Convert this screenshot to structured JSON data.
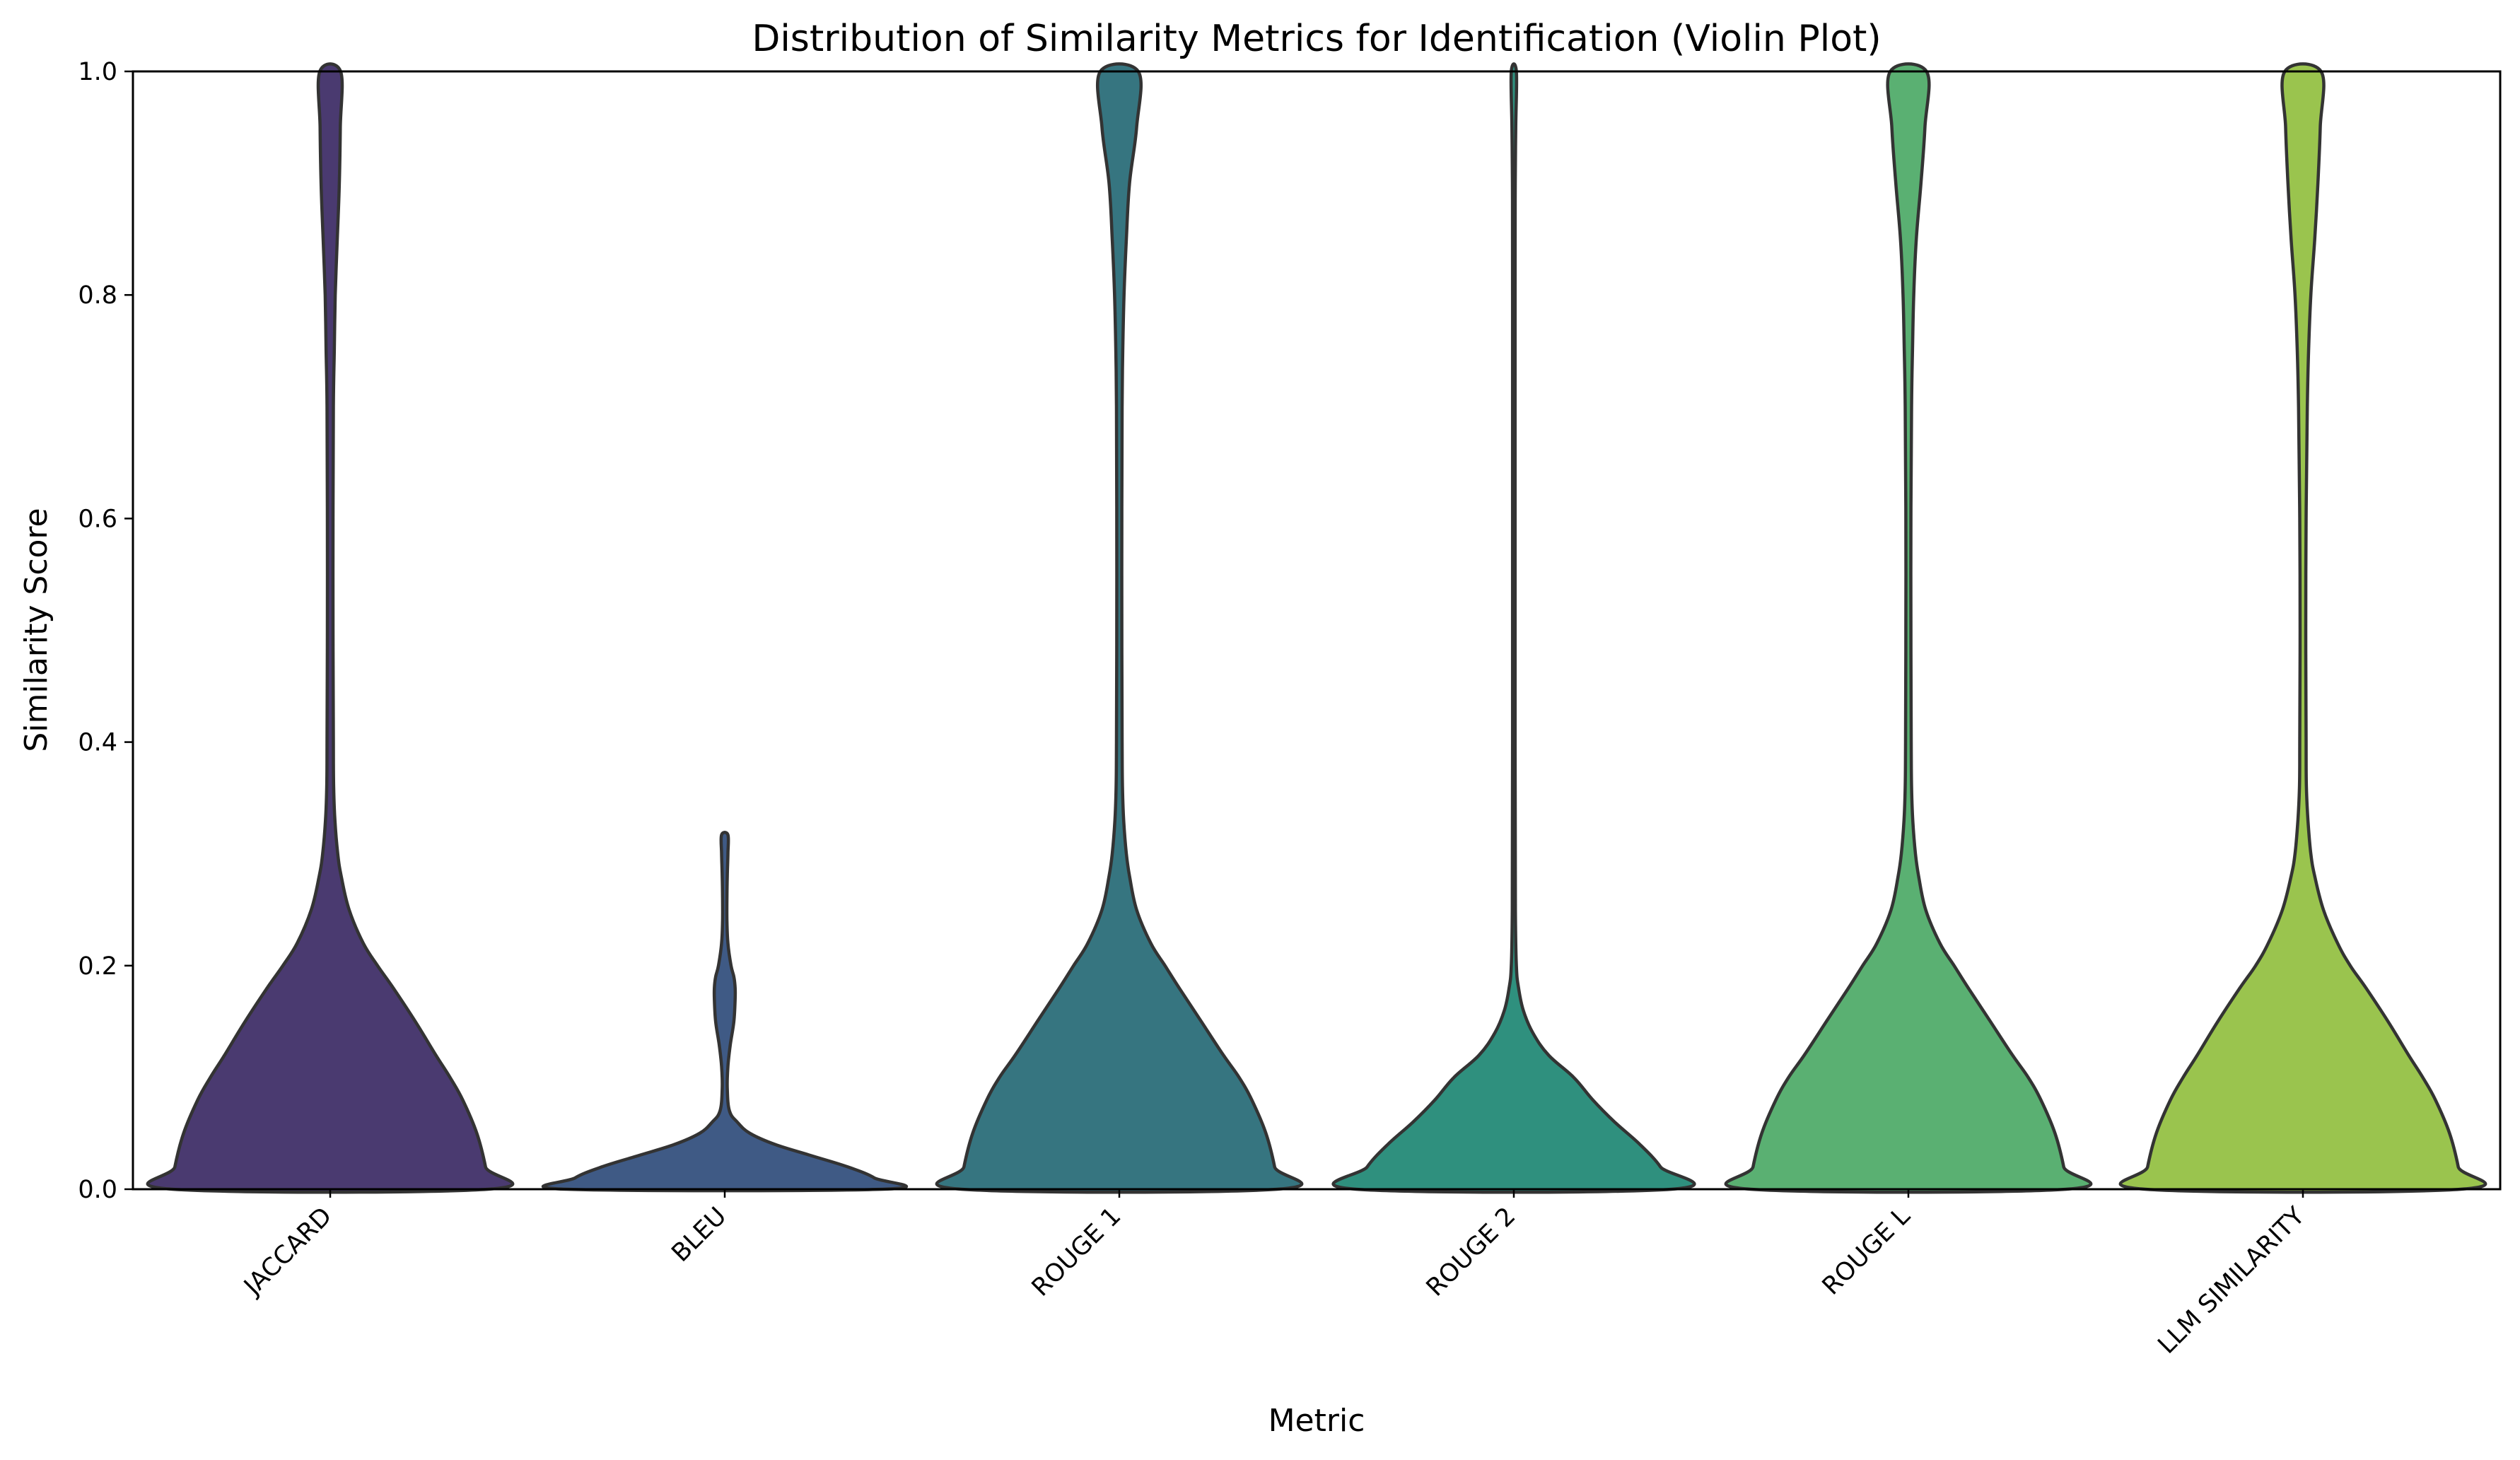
{
  "chart_data": {
    "type": "violin",
    "title": "Distribution of Similarity Metrics for Identification (Violin Plot)",
    "xlabel": "Metric",
    "ylabel": "Similarity Score",
    "ylim": [
      0,
      1
    ],
    "yticks": [
      "0.0",
      "0.2",
      "0.4",
      "0.6",
      "0.8",
      "1.0"
    ],
    "yticks_values": [
      0,
      0.2,
      0.4,
      0.6,
      0.8,
      1.0
    ],
    "grid": false,
    "legend": "none",
    "categories": [
      "JACCARD",
      "BLEU",
      "ROUGE 1",
      "ROUGE 2",
      "ROUGE L",
      "LLM SIMILARITY"
    ],
    "colors": [
      "#4a3a70",
      "#3f5a85",
      "#367580",
      "#2f907e",
      "#5ab072",
      "#9ac44e"
    ],
    "density_unit_note": "",
    "violins": [
      {
        "category": "JACCARD",
        "y_max": 1.0,
        "profile": [
          [
            0,
            1
          ],
          [
            0.02,
            0.985
          ],
          [
            0.05,
            0.93
          ],
          [
            0.08,
            0.84
          ],
          [
            0.1,
            0.76
          ],
          [
            0.12,
            0.67
          ],
          [
            0.15,
            0.54
          ],
          [
            0.18,
            0.4
          ],
          [
            0.2,
            0.3
          ],
          [
            0.22,
            0.21
          ],
          [
            0.25,
            0.12
          ],
          [
            0.28,
            0.07
          ],
          [
            0.3,
            0.048
          ],
          [
            0.33,
            0.03
          ],
          [
            0.36,
            0.022
          ],
          [
            0.4,
            0.02
          ],
          [
            0.5,
            0.018
          ],
          [
            0.6,
            0.018
          ],
          [
            0.7,
            0.02
          ],
          [
            0.75,
            0.026
          ],
          [
            0.8,
            0.032
          ],
          [
            0.85,
            0.045
          ],
          [
            0.9,
            0.058
          ],
          [
            0.95,
            0.064
          ],
          [
            1.0,
            0.066
          ]
        ]
      },
      {
        "category": "BLEU",
        "y_max": 0.317,
        "profile": [
          [
            0,
            1
          ],
          [
            0.01,
            0.95
          ],
          [
            0.02,
            0.78
          ],
          [
            0.03,
            0.55
          ],
          [
            0.04,
            0.32
          ],
          [
            0.05,
            0.16
          ],
          [
            0.06,
            0.08
          ],
          [
            0.07,
            0.03
          ],
          [
            0.09,
            0.016
          ],
          [
            0.11,
            0.02
          ],
          [
            0.13,
            0.036
          ],
          [
            0.15,
            0.058
          ],
          [
            0.17,
            0.066
          ],
          [
            0.18,
            0.066
          ],
          [
            0.19,
            0.058
          ],
          [
            0.2,
            0.04
          ],
          [
            0.22,
            0.02
          ],
          [
            0.24,
            0.014
          ],
          [
            0.26,
            0.014
          ],
          [
            0.28,
            0.016
          ],
          [
            0.3,
            0.02
          ],
          [
            0.317,
            0.02
          ]
        ]
      },
      {
        "category": "ROUGE 1",
        "y_max": 1.0,
        "profile": [
          [
            0,
            1
          ],
          [
            0.02,
            0.985
          ],
          [
            0.05,
            0.93
          ],
          [
            0.08,
            0.84
          ],
          [
            0.1,
            0.76
          ],
          [
            0.12,
            0.66
          ],
          [
            0.15,
            0.52
          ],
          [
            0.18,
            0.38
          ],
          [
            0.2,
            0.29
          ],
          [
            0.22,
            0.2
          ],
          [
            0.25,
            0.11
          ],
          [
            0.28,
            0.065
          ],
          [
            0.3,
            0.045
          ],
          [
            0.33,
            0.028
          ],
          [
            0.36,
            0.02
          ],
          [
            0.4,
            0.018
          ],
          [
            0.5,
            0.016
          ],
          [
            0.6,
            0.016
          ],
          [
            0.7,
            0.018
          ],
          [
            0.75,
            0.022
          ],
          [
            0.8,
            0.03
          ],
          [
            0.85,
            0.045
          ],
          [
            0.9,
            0.065
          ],
          [
            0.95,
            0.11
          ],
          [
            1.0,
            0.12
          ]
        ]
      },
      {
        "category": "ROUGE 2",
        "y_max": 1.0,
        "profile": [
          [
            0,
            1
          ],
          [
            0.02,
            0.93
          ],
          [
            0.04,
            0.8
          ],
          [
            0.06,
            0.64
          ],
          [
            0.08,
            0.5
          ],
          [
            0.1,
            0.38
          ],
          [
            0.12,
            0.22
          ],
          [
            0.14,
            0.12
          ],
          [
            0.16,
            0.06
          ],
          [
            0.18,
            0.03
          ],
          [
            0.2,
            0.016
          ],
          [
            0.25,
            0.01
          ],
          [
            0.4,
            0.008
          ],
          [
            0.6,
            0.008
          ],
          [
            0.8,
            0.008
          ],
          [
            0.9,
            0.009
          ],
          [
            0.95,
            0.012
          ],
          [
            1.0,
            0.016
          ]
        ]
      },
      {
        "category": "ROUGE L",
        "y_max": 1.0,
        "profile": [
          [
            0,
            1
          ],
          [
            0.02,
            0.985
          ],
          [
            0.05,
            0.93
          ],
          [
            0.08,
            0.84
          ],
          [
            0.1,
            0.76
          ],
          [
            0.12,
            0.66
          ],
          [
            0.15,
            0.52
          ],
          [
            0.18,
            0.38
          ],
          [
            0.2,
            0.29
          ],
          [
            0.22,
            0.2
          ],
          [
            0.25,
            0.11
          ],
          [
            0.28,
            0.065
          ],
          [
            0.3,
            0.045
          ],
          [
            0.33,
            0.028
          ],
          [
            0.36,
            0.02
          ],
          [
            0.4,
            0.018
          ],
          [
            0.5,
            0.016
          ],
          [
            0.6,
            0.016
          ],
          [
            0.7,
            0.02
          ],
          [
            0.75,
            0.026
          ],
          [
            0.8,
            0.034
          ],
          [
            0.85,
            0.05
          ],
          [
            0.9,
            0.08
          ],
          [
            0.95,
            0.105
          ],
          [
            1.0,
            0.115
          ]
        ]
      },
      {
        "category": "LLM SIMILARITY",
        "y_max": 1.0,
        "profile": [
          [
            0,
            1
          ],
          [
            0.02,
            0.985
          ],
          [
            0.05,
            0.93
          ],
          [
            0.08,
            0.84
          ],
          [
            0.1,
            0.76
          ],
          [
            0.12,
            0.67
          ],
          [
            0.15,
            0.54
          ],
          [
            0.18,
            0.4
          ],
          [
            0.2,
            0.3
          ],
          [
            0.22,
            0.22
          ],
          [
            0.25,
            0.13
          ],
          [
            0.28,
            0.075
          ],
          [
            0.3,
            0.05
          ],
          [
            0.33,
            0.032
          ],
          [
            0.36,
            0.022
          ],
          [
            0.4,
            0.02
          ],
          [
            0.5,
            0.018
          ],
          [
            0.6,
            0.02
          ],
          [
            0.7,
            0.028
          ],
          [
            0.75,
            0.036
          ],
          [
            0.8,
            0.05
          ],
          [
            0.85,
            0.075
          ],
          [
            0.9,
            0.095
          ],
          [
            0.95,
            0.11
          ],
          [
            1.0,
            0.115
          ]
        ]
      }
    ]
  }
}
